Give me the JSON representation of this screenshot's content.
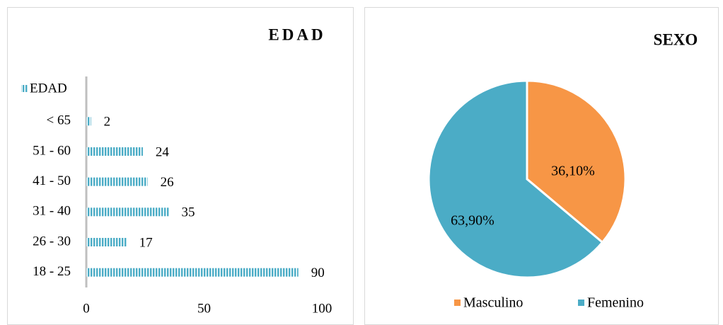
{
  "chart_data": [
    {
      "type": "barh",
      "title": "EDAD",
      "categories": [
        "< 65",
        "51 - 60",
        "41 - 50",
        "31 - 40",
        "26 - 30",
        "18 - 25"
      ],
      "series": [
        {
          "name": "EDAD",
          "color": "#4bacc6",
          "values": [
            2,
            24,
            26,
            35,
            17,
            90
          ]
        }
      ],
      "xlim": [
        0,
        100
      ],
      "xticks": [
        0,
        50,
        100
      ],
      "legend": "top-left"
    },
    {
      "type": "pie",
      "title": "SEXO",
      "categories": [
        "Masculino",
        "Femenino"
      ],
      "values": [
        36.1,
        63.9
      ],
      "value_labels": [
        "36,10%",
        "63,90%"
      ],
      "colors": [
        "#f79646",
        "#4bacc6"
      ],
      "legend": "bottom"
    }
  ]
}
